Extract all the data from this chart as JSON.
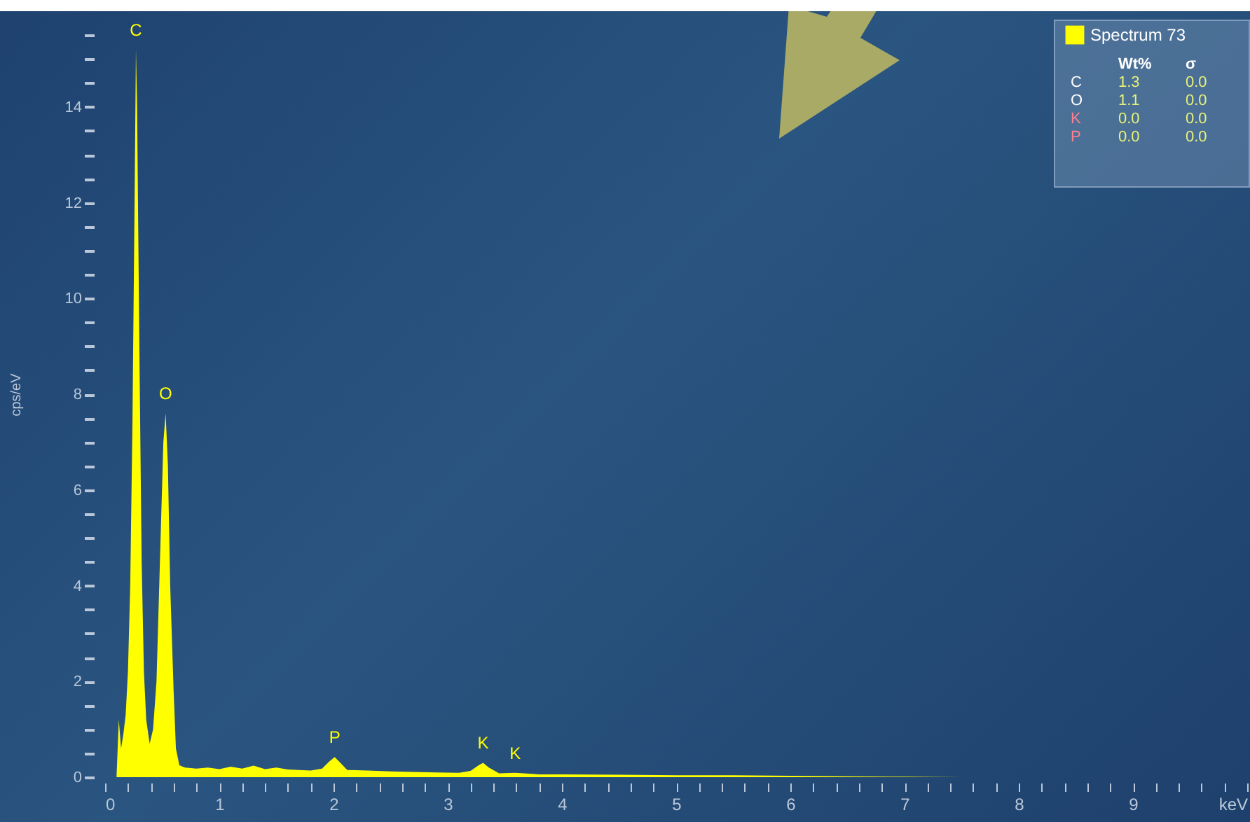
{
  "chart_data": {
    "type": "area",
    "ylabel": "cps/eV",
    "xlim": [
      0,
      10
    ],
    "ylim": [
      0,
      16
    ],
    "xticks": [
      0,
      {
        "value": 0.2,
        "label": null
      },
      {
        "value": 0.4,
        "label": null
      },
      {
        "value": 0.6,
        "label": null
      },
      {
        "value": 0.8,
        "label": null
      },
      1,
      {
        "value": 1.2,
        "label": null
      },
      {
        "value": 1.4,
        "label": null
      },
      {
        "value": 1.6,
        "label": null
      },
      {
        "value": 1.8,
        "label": null
      },
      2,
      {
        "value": 2.2,
        "label": null
      },
      {
        "value": 2.4,
        "label": null
      },
      {
        "value": 2.6,
        "label": null
      },
      {
        "value": 2.8,
        "label": null
      },
      3,
      {
        "value": 3.2,
        "label": null
      },
      {
        "value": 3.4,
        "label": null
      },
      {
        "value": 3.6,
        "label": null
      },
      {
        "value": 3.8,
        "label": null
      },
      4,
      {
        "value": 4.2,
        "label": null
      },
      {
        "value": 4.4,
        "label": null
      },
      {
        "value": 4.6,
        "label": null
      },
      {
        "value": 4.8,
        "label": null
      },
      5,
      {
        "value": 5.2,
        "label": null
      },
      {
        "value": 5.4,
        "label": null
      },
      {
        "value": 5.6,
        "label": null
      },
      {
        "value": 5.8,
        "label": null
      },
      6,
      {
        "value": 6.2,
        "label": null
      },
      {
        "value": 6.4,
        "label": null
      },
      {
        "value": 6.6,
        "label": null
      },
      {
        "value": 6.8,
        "label": null
      },
      7,
      {
        "value": 7.2,
        "label": null
      },
      {
        "value": 7.4,
        "label": null
      },
      {
        "value": 7.6,
        "label": null
      },
      {
        "value": 7.8,
        "label": null
      },
      8,
      {
        "value": 8.2,
        "label": null
      },
      {
        "value": 8.4,
        "label": null
      },
      {
        "value": 8.6,
        "label": null
      },
      {
        "value": 8.8,
        "label": null
      },
      9,
      {
        "value": 9.2,
        "label": null
      },
      {
        "value": 9.4,
        "label": null
      },
      {
        "value": 9.6,
        "label": null
      },
      {
        "value": 9.8,
        "label": null
      },
      {
        "value": 10,
        "label": "keV"
      }
    ],
    "yticks": [
      0,
      {
        "value": 0.5,
        "label": null
      },
      {
        "value": 1,
        "label": null
      },
      {
        "value": 1.5,
        "label": null
      },
      2,
      {
        "value": 2.5,
        "label": null
      },
      {
        "value": 3,
        "label": null
      },
      {
        "value": 3.5,
        "label": null
      },
      4,
      {
        "value": 4.5,
        "label": null
      },
      {
        "value": 5,
        "label": null
      },
      {
        "value": 5.5,
        "label": null
      },
      6,
      {
        "value": 6.5,
        "label": null
      },
      {
        "value": 7,
        "label": null
      },
      {
        "value": 7.5,
        "label": null
      },
      8,
      {
        "value": 8.5,
        "label": null
      },
      {
        "value": 9,
        "label": null
      },
      {
        "value": 9.5,
        "label": null
      },
      10,
      {
        "value": 10.5,
        "label": null
      },
      {
        "value": 11,
        "label": null
      },
      {
        "value": 11.5,
        "label": null
      },
      12,
      {
        "value": 12.5,
        "label": null
      },
      {
        "value": 13,
        "label": null
      },
      {
        "value": 13.5,
        "label": null
      },
      14,
      {
        "value": 14.5,
        "label": null
      },
      {
        "value": 15,
        "label": null
      },
      {
        "value": 15.5,
        "label": null
      }
    ],
    "grid": false,
    "legend": "top right",
    "series": [
      {
        "name": "Spectrum 73",
        "color": "#ffff00",
        "x": [
          0.1,
          0.12,
          0.14,
          0.16,
          0.18,
          0.2,
          0.22,
          0.24,
          0.26,
          0.27,
          0.28,
          0.3,
          0.32,
          0.34,
          0.36,
          0.39,
          0.42,
          0.45,
          0.48,
          0.51,
          0.53,
          0.55,
          0.57,
          0.6,
          0.62,
          0.65,
          0.7,
          0.8,
          0.9,
          1.0,
          1.1,
          1.2,
          1.3,
          1.4,
          1.5,
          1.6,
          1.7,
          1.8,
          1.9,
          1.96,
          2.01,
          2.06,
          2.12,
          2.3,
          2.5,
          2.7,
          2.9,
          3.1,
          3.2,
          3.27,
          3.31,
          3.36,
          3.45,
          3.59,
          3.8,
          4.0,
          4.5,
          5.0,
          5.5,
          6.0,
          6.5,
          7.0,
          7.5
        ],
        "values": [
          0,
          1.2,
          0.6,
          0.9,
          1.3,
          2.2,
          4,
          7.5,
          12.5,
          15.2,
          14,
          9,
          4.5,
          2.2,
          1.2,
          0.7,
          1.0,
          2.0,
          4.5,
          7.0,
          7.6,
          6.5,
          4,
          1.8,
          0.6,
          0.25,
          0.2,
          0.18,
          0.2,
          0.17,
          0.22,
          0.18,
          0.24,
          0.17,
          0.2,
          0.16,
          0.15,
          0.14,
          0.18,
          0.32,
          0.42,
          0.3,
          0.15,
          0.14,
          0.12,
          0.11,
          0.1,
          0.09,
          0.13,
          0.25,
          0.3,
          0.2,
          0.08,
          0.09,
          0.06,
          0.06,
          0.05,
          0.04,
          0.04,
          0.03,
          0.02,
          0.01,
          0
        ]
      }
    ],
    "annotations": [
      {
        "text": "C",
        "x": 0.27,
        "y": 15.2
      },
      {
        "text": "O",
        "x": 0.53,
        "y": 7.6
      },
      {
        "text": "P",
        "x": 2.01,
        "y": 0.42
      },
      {
        "text": "K",
        "x": 3.31,
        "y": 0.3
      },
      {
        "text": "K",
        "x": 3.59,
        "y": 0.09
      },
      "Wt% σ",
      "C 1.3 0.0",
      "O 1.1 0.0",
      "K 0.0 0.0",
      "P 0.0 0.0"
    ]
  }
}
